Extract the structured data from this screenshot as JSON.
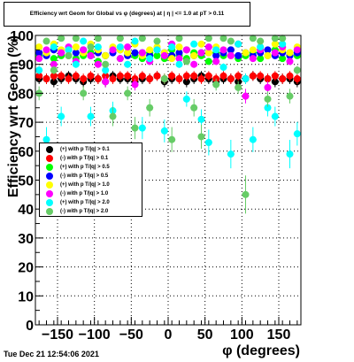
{
  "title": "Efficiency wrt Geom for Global vs φ (degrees) at | η | <= 1.0 at pT > 0.11",
  "footer": "Tue Dec 21 12:54:06 2021",
  "chart_data": {
    "type": "scatter",
    "title": "Efficiency wrt Geom for Global vs φ (degrees) at | η | <= 1.0 at pT > 0.11",
    "xlabel": "φ (degrees)",
    "ylabel": "Efficiency wrt Geom (%)",
    "xlim": [
      -180,
      180
    ],
    "ylim": [
      0,
      100
    ],
    "xticks": [
      -150,
      -100,
      -50,
      0,
      50,
      100,
      150
    ],
    "yticks": [
      0,
      10,
      20,
      30,
      40,
      50,
      60,
      70,
      80,
      90,
      100
    ],
    "grid": true,
    "legend_position": "left",
    "series": [
      {
        "name": "(+) with p T/|q| > 0.1",
        "color": "#000000",
        "x": [
          -175,
          -165,
          -155,
          -145,
          -135,
          -125,
          -115,
          -105,
          -95,
          -85,
          -75,
          -65,
          -55,
          -45,
          -35,
          -25,
          -15,
          -5,
          5,
          15,
          25,
          35,
          45,
          55,
          65,
          75,
          85,
          95,
          105,
          115,
          125,
          135,
          145,
          155,
          165,
          175
        ],
        "y": [
          85,
          85,
          84,
          85,
          86,
          85,
          84,
          85,
          85,
          84,
          86,
          85,
          85,
          84,
          85,
          85,
          86,
          84,
          85,
          85,
          84,
          85,
          86,
          85,
          84,
          85,
          85,
          84,
          85,
          86,
          85,
          85,
          84,
          85,
          85,
          84
        ]
      },
      {
        "name": "(-) with p T/|q| > 0.1",
        "color": "#ff0000",
        "x": [
          -175,
          -165,
          -155,
          -145,
          -135,
          -125,
          -115,
          -105,
          -95,
          -85,
          -75,
          -65,
          -55,
          -45,
          -35,
          -25,
          -15,
          -5,
          5,
          15,
          25,
          35,
          45,
          55,
          65,
          75,
          85,
          95,
          105,
          115,
          125,
          135,
          145,
          155,
          165,
          175
        ],
        "y": [
          86,
          85,
          86,
          86,
          85,
          86,
          85,
          86,
          85,
          86,
          85,
          86,
          86,
          85,
          86,
          85,
          86,
          85,
          86,
          85,
          86,
          86,
          85,
          86,
          85,
          86,
          85,
          86,
          85,
          86,
          86,
          85,
          86,
          85,
          86,
          85
        ]
      },
      {
        "name": "(+) with p T/|q| > 0.5",
        "color": "#00ff00",
        "x": [
          -175,
          -165,
          -155,
          -145,
          -135,
          -125,
          -115,
          -105,
          -95,
          -85,
          -75,
          -65,
          -55,
          -45,
          -35,
          -25,
          -15,
          -5,
          5,
          15,
          25,
          35,
          45,
          55,
          65,
          75,
          85,
          95,
          105,
          115,
          125,
          135,
          145,
          155,
          165,
          175
        ],
        "y": [
          93,
          94,
          92,
          93,
          95,
          92,
          93,
          94,
          91,
          93,
          95,
          92,
          94,
          93,
          92,
          94,
          93,
          92,
          95,
          93,
          92,
          94,
          93,
          91,
          94,
          93,
          95,
          92,
          93,
          94,
          92,
          93,
          95,
          92,
          94,
          93
        ]
      },
      {
        "name": "(-) with p T/|q| > 0.5",
        "color": "#0000ff",
        "x": [
          -175,
          -165,
          -155,
          -145,
          -135,
          -125,
          -115,
          -105,
          -95,
          -85,
          -75,
          -65,
          -55,
          -45,
          -35,
          -25,
          -15,
          -5,
          5,
          15,
          25,
          35,
          45,
          55,
          65,
          75,
          85,
          95,
          105,
          115,
          125,
          135,
          145,
          155,
          165,
          175
        ],
        "y": [
          94,
          93,
          95,
          94,
          93,
          94,
          95,
          93,
          94,
          93,
          94,
          95,
          93,
          94,
          94,
          93,
          95,
          94,
          93,
          94,
          95,
          93,
          94,
          94,
          93,
          94,
          95,
          93,
          94,
          93,
          94,
          95,
          93,
          94,
          93,
          94
        ]
      },
      {
        "name": "(+) with p T/|q| > 1.0",
        "color": "#ffff00",
        "x": [
          -175,
          -165,
          -155,
          -145,
          -135,
          -125,
          -115,
          -105,
          -95,
          -85,
          -75,
          -65,
          -55,
          -45,
          -35,
          -25,
          -15,
          -5,
          5,
          15,
          25,
          35,
          45,
          55,
          65,
          75,
          85,
          95,
          105,
          115,
          125,
          135,
          145,
          155,
          165,
          175
        ],
        "y": [
          96,
          94,
          97,
          95,
          93,
          96,
          94,
          97,
          95,
          93,
          96,
          95,
          94,
          97,
          93,
          95,
          96,
          94,
          92,
          96,
          95,
          93,
          97,
          94,
          96,
          95,
          93,
          97,
          94,
          95,
          96,
          93,
          97,
          95,
          94,
          96
        ]
      },
      {
        "name": "(-) with p T/|q| > 1.0",
        "color": "#ff00ff",
        "x": [
          -175,
          -165,
          -155,
          -145,
          -135,
          -125,
          -115,
          -105,
          -95,
          -85,
          -75,
          -65,
          -55,
          -45,
          -35,
          -25,
          -15,
          -5,
          5,
          15,
          25,
          35,
          45,
          55,
          65,
          75,
          85,
          95,
          105,
          115,
          125,
          135,
          145,
          155,
          165,
          175
        ],
        "y": [
          92,
          95,
          90,
          94,
          96,
          91,
          95,
          93,
          90,
          84,
          95,
          92,
          96,
          83,
          94,
          91,
          95,
          93,
          97,
          92,
          95,
          90,
          94,
          96,
          91,
          95,
          93,
          97,
          79,
          92,
          95,
          82,
          94,
          96,
          91,
          95
        ]
      },
      {
        "name": "(+) with p T/|q| > 2.0",
        "color": "#00ffff",
        "x": [
          -175,
          -165,
          -155,
          -145,
          -135,
          -125,
          -115,
          -105,
          -95,
          -85,
          -75,
          -65,
          -55,
          -45,
          -35,
          -25,
          -15,
          -5,
          5,
          15,
          25,
          35,
          45,
          55,
          65,
          75,
          85,
          95,
          105,
          115,
          125,
          135,
          145,
          155,
          165,
          175
        ],
        "y": [
          88,
          64,
          96,
          72,
          95,
          90,
          98,
          72,
          96,
          88,
          74,
          96,
          90,
          98,
          68,
          92,
          95,
          67,
          96,
          90,
          78,
          97,
          71,
          63,
          95,
          89,
          59,
          97,
          85,
          64,
          96,
          75,
          72,
          97,
          59,
          66
        ]
      },
      {
        "name": "(-) with p T/|q| > 2.0",
        "color": "#66cc66",
        "x": [
          -175,
          -165,
          -155,
          -145,
          -135,
          -125,
          -115,
          -105,
          -95,
          -85,
          -75,
          -65,
          -55,
          -45,
          -35,
          -25,
          -15,
          -5,
          5,
          15,
          25,
          35,
          45,
          55,
          65,
          75,
          85,
          95,
          105,
          115,
          125,
          135,
          145,
          155,
          165,
          175
        ],
        "y": [
          80,
          98,
          88,
          99,
          93,
          99,
          80,
          96,
          99,
          90,
          72,
          99,
          80,
          68,
          99,
          75,
          98,
          85,
          64,
          99,
          91,
          75,
          65,
          99,
          83,
          99,
          98,
          82,
          45,
          99,
          98,
          78,
          99,
          99,
          79,
          88
        ]
      }
    ]
  }
}
